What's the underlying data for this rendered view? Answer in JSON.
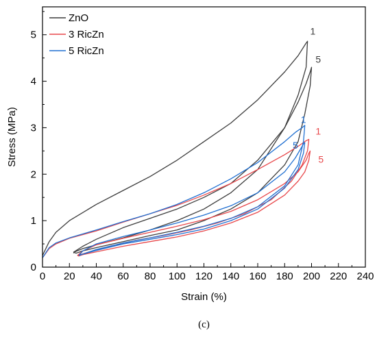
{
  "chart_data": {
    "type": "line",
    "xlabel": "Strain (%)",
    "ylabel": "Stress (MPa)",
    "xlim": [
      0,
      240
    ],
    "ylim": [
      0,
      5.6
    ],
    "xticks": [
      "0",
      "20",
      "40",
      "60",
      "80",
      "100",
      "120",
      "140",
      "160",
      "180",
      "200",
      "220",
      "240"
    ],
    "yticks": [
      "0",
      "1",
      "2",
      "3",
      "4",
      "5"
    ],
    "legend_position": "top-left",
    "caption": "(c)",
    "colors": {
      "ZnO": "#3c3c3c",
      "3 RicZn": "#e8474a",
      "5 RicZn": "#1f6fd1"
    },
    "series": [
      {
        "name": "ZnO",
        "color": "#3c3c3c",
        "loops": [
          {
            "label": "1",
            "label_at": [
              199,
              5.0
            ],
            "x": [
              0,
              5,
              10,
              20,
              40,
              60,
              80,
              100,
              120,
              140,
              160,
              180,
              190,
              196,
              197,
              196,
              190,
              180,
              160,
              140,
              120,
              100,
              80,
              60,
              40,
              30,
              24,
              23
            ],
            "y": [
              0.25,
              0.55,
              0.75,
              1.0,
              1.35,
              1.65,
              1.95,
              2.3,
              2.7,
              3.1,
              3.6,
              4.2,
              4.55,
              4.82,
              4.86,
              4.3,
              3.7,
              3.0,
              2.1,
              1.6,
              1.25,
              1.0,
              0.8,
              0.63,
              0.48,
              0.4,
              0.33,
              0.3
            ]
          },
          {
            "label": "5",
            "label_at": [
              203,
              4.4
            ],
            "x": [
              23,
              30,
              40,
              60,
              80,
              100,
              120,
              140,
              160,
              180,
              190,
              196,
              199,
              200,
              199,
              195,
              190,
              180,
              160,
              140,
              120,
              100,
              80,
              60,
              40,
              30,
              25,
              23
            ],
            "y": [
              0.32,
              0.45,
              0.6,
              0.85,
              1.05,
              1.25,
              1.5,
              1.8,
              2.3,
              3.0,
              3.55,
              3.95,
              4.2,
              4.3,
              3.9,
              3.3,
              2.7,
              2.2,
              1.6,
              1.25,
              1.0,
              0.8,
              0.68,
              0.55,
              0.42,
              0.35,
              0.3,
              0.32
            ]
          }
        ]
      },
      {
        "name": "3 RicZn",
        "color": "#e8474a",
        "loops": [
          {
            "label": "1",
            "label_at": [
              203,
              2.85
            ],
            "x": [
              0,
              5,
              10,
              20,
              40,
              60,
              80,
              100,
              120,
              140,
              160,
              180,
              190,
              196,
              198,
              197,
              193,
              185,
              170,
              150,
              130,
              110,
              90,
              70,
              50,
              35,
              28,
              26
            ],
            "y": [
              0.2,
              0.4,
              0.5,
              0.62,
              0.78,
              0.97,
              1.15,
              1.33,
              1.55,
              1.8,
              2.1,
              2.42,
              2.6,
              2.72,
              2.75,
              2.5,
              2.2,
              1.85,
              1.45,
              1.15,
              0.95,
              0.8,
              0.68,
              0.58,
              0.45,
              0.33,
              0.27,
              0.25
            ]
          },
          {
            "label": "5",
            "label_at": [
              205,
              2.25
            ],
            "x": [
              26,
              30,
              40,
              60,
              80,
              100,
              120,
              140,
              160,
              180,
              190,
              196,
              198,
              199,
              198,
              195,
              190,
              180,
              160,
              140,
              120,
              100,
              80,
              60,
              40,
              30,
              27,
              26
            ],
            "y": [
              0.25,
              0.35,
              0.48,
              0.62,
              0.75,
              0.88,
              1.02,
              1.2,
              1.45,
              1.8,
              2.05,
              2.3,
              2.45,
              2.5,
              2.3,
              2.05,
              1.85,
              1.55,
              1.18,
              0.95,
              0.78,
              0.65,
              0.55,
              0.45,
              0.33,
              0.27,
              0.24,
              0.25
            ]
          }
        ]
      },
      {
        "name": "5 RicZn",
        "color": "#1f6fd1",
        "loops": [
          {
            "label": "1",
            "label_at": [
              192,
              3.1
            ],
            "x": [
              0,
              5,
              10,
              20,
              40,
              60,
              80,
              100,
              120,
              140,
              160,
              180,
              188,
              193,
              195,
              194,
              190,
              180,
              160,
              140,
              120,
              100,
              80,
              60,
              40,
              32,
              28,
              27
            ],
            "y": [
              0.2,
              0.42,
              0.52,
              0.63,
              0.8,
              0.98,
              1.15,
              1.35,
              1.6,
              1.9,
              2.25,
              2.7,
              2.9,
              3.0,
              3.05,
              2.7,
              2.2,
              1.75,
              1.3,
              1.05,
              0.88,
              0.75,
              0.63,
              0.52,
              0.38,
              0.3,
              0.26,
              0.25
            ]
          },
          {
            "label": "5",
            "label_at": [
              186,
              2.55
            ],
            "x": [
              27,
              30,
              40,
              60,
              80,
              100,
              120,
              140,
              160,
              180,
              188,
              192,
              194,
              195,
              194,
              190,
              180,
              160,
              140,
              120,
              100,
              80,
              60,
              40,
              30,
              28,
              27
            ],
            "y": [
              0.25,
              0.35,
              0.5,
              0.66,
              0.8,
              0.95,
              1.12,
              1.32,
              1.6,
              2.05,
              2.35,
              2.55,
              2.65,
              2.68,
              2.45,
              2.1,
              1.7,
              1.25,
              1.0,
              0.82,
              0.7,
              0.6,
              0.5,
              0.36,
              0.28,
              0.26,
              0.25
            ]
          }
        ]
      }
    ]
  }
}
